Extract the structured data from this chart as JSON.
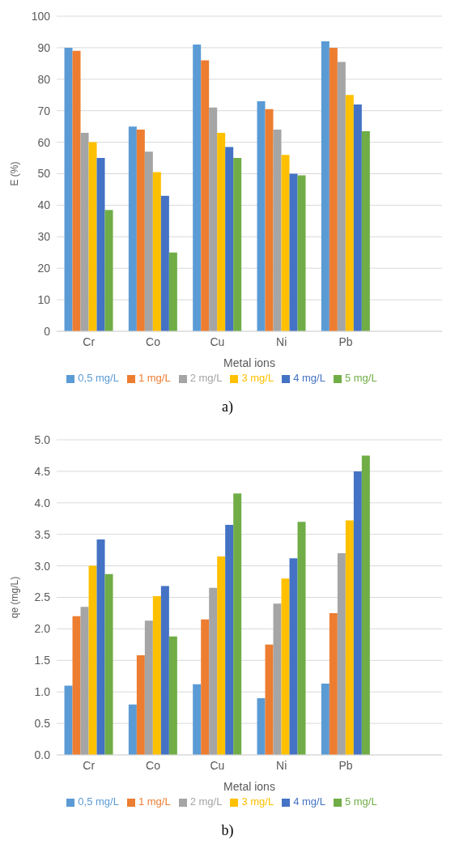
{
  "chart_data": [
    {
      "type": "bar",
      "xlabel": "Metal ions",
      "ylabel": "E (%)",
      "annotations": [
        "a)"
      ],
      "categories": [
        "Cr",
        "Co",
        "Cu",
        "Ni",
        "Pb",
        null
      ],
      "ylim": [
        0,
        100
      ],
      "yticks": [
        0,
        10,
        20,
        30,
        40,
        50,
        60,
        70,
        80,
        90,
        100
      ],
      "grid": "y",
      "legend": "bottom",
      "series": [
        {
          "name": "0,5 mg/L",
          "color": "#5b9bd5",
          "values": [
            90,
            65,
            91,
            73,
            92,
            null
          ]
        },
        {
          "name": "1 mg/L",
          "color": "#ed7d31",
          "values": [
            89,
            64,
            86,
            70.5,
            90,
            null
          ]
        },
        {
          "name": "2 mg/L",
          "color": "#a5a5a5",
          "values": [
            63,
            57,
            71,
            64,
            85.5,
            null
          ]
        },
        {
          "name": "3 mg/L",
          "color": "#ffc000",
          "values": [
            60,
            50.5,
            63,
            56,
            75,
            null
          ]
        },
        {
          "name": "4 mg/L",
          "color": "#4472c4",
          "values": [
            55,
            43,
            58.5,
            50,
            72,
            null
          ]
        },
        {
          "name": "5 mg/L",
          "color": "#70ad47",
          "values": [
            38.5,
            25,
            55,
            49.5,
            63.5,
            null
          ]
        }
      ]
    },
    {
      "type": "bar",
      "xlabel": "Metal ions",
      "ylabel": "qe (mg/L)",
      "annotations": [
        "b)"
      ],
      "categories": [
        "Cr",
        "Co",
        "Cu",
        "Ni",
        "Pb",
        null
      ],
      "ylim": [
        0,
        5
      ],
      "yticks": [
        {
          "value": 0,
          "label": "0.0"
        },
        {
          "value": 0.5,
          "label": "0.5"
        },
        {
          "value": 1,
          "label": "1.0"
        },
        {
          "value": 1.5,
          "label": "1.5"
        },
        {
          "value": 2,
          "label": "2.0"
        },
        {
          "value": 2.5,
          "label": "2.5"
        },
        {
          "value": 3,
          "label": "3.0"
        },
        {
          "value": 3.5,
          "label": "3.5"
        },
        {
          "value": 4,
          "label": "4.0"
        },
        {
          "value": 4.5,
          "label": "4.5"
        },
        {
          "value": 5,
          "label": "5.0"
        }
      ],
      "grid": "y",
      "legend": "bottom",
      "series": [
        {
          "name": "0,5 mg/L",
          "color": "#5b9bd5",
          "values": [
            1.1,
            0.8,
            1.12,
            0.9,
            1.13,
            null
          ]
        },
        {
          "name": "1 mg/L",
          "color": "#ed7d31",
          "values": [
            2.2,
            1.58,
            2.15,
            1.75,
            2.25,
            null
          ]
        },
        {
          "name": "2 mg/L",
          "color": "#a5a5a5",
          "values": [
            2.35,
            2.13,
            2.65,
            2.4,
            3.2,
            null
          ]
        },
        {
          "name": "3 mg/L",
          "color": "#ffc000",
          "values": [
            3.0,
            2.52,
            3.15,
            2.8,
            3.72,
            null
          ]
        },
        {
          "name": "4 mg/L",
          "color": "#4472c4",
          "values": [
            3.42,
            2.68,
            3.65,
            3.12,
            4.5,
            null
          ]
        },
        {
          "name": "5 mg/L",
          "color": "#70ad47",
          "values": [
            2.87,
            1.88,
            4.15,
            3.7,
            4.75,
            null
          ]
        }
      ]
    }
  ]
}
